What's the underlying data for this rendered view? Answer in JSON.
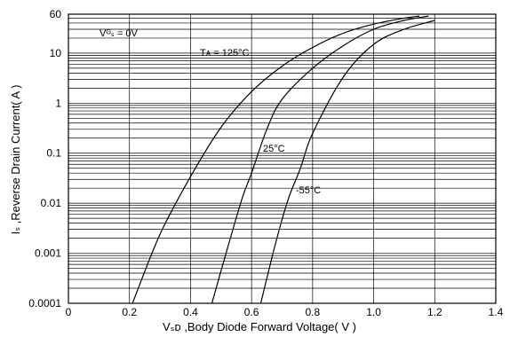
{
  "chart_data": {
    "type": "line",
    "title": "",
    "xlabel": "Vₛᴅ ,Body Diode Forward Voltage( V )",
    "ylabel": "Iₛ ,Reverse Drain Current( A )",
    "xlim": [
      0,
      1.4
    ],
    "ylim": [
      0.0001,
      60
    ],
    "yscale": "log",
    "grid": true,
    "x_ticks": [
      "0",
      "0.2",
      "0.4",
      "0.6",
      "0.8",
      "1.0",
      "1.2",
      "1.4"
    ],
    "y_ticks": [
      "0.0001",
      "0.001",
      "0.01",
      "0.1",
      "1",
      "10",
      "60"
    ],
    "annotations": {
      "condition": "Vᴳₛ = 0V",
      "ta_label": "Tᴀ = 125°C"
    },
    "series": [
      {
        "name": "125°C",
        "x": [
          0.21,
          0.3,
          0.4,
          0.5,
          0.6,
          0.7,
          0.8,
          0.9,
          1.0,
          1.1,
          1.15
        ],
        "y": [
          0.0001,
          0.0024,
          0.034,
          0.33,
          1.7,
          5.5,
          13,
          25,
          38,
          50,
          55
        ]
      },
      {
        "name": "25°C",
        "x": [
          0.47,
          0.52,
          0.57,
          0.6,
          0.65,
          0.7,
          0.8,
          0.9,
          1.0,
          1.1,
          1.18
        ],
        "y": [
          0.0001,
          0.0012,
          0.013,
          0.04,
          0.3,
          1.2,
          5,
          14,
          30,
          45,
          55
        ]
      },
      {
        "name": "-55°C",
        "x": [
          0.63,
          0.68,
          0.72,
          0.76,
          0.8,
          0.9,
          1.0,
          1.1,
          1.2
        ],
        "y": [
          0.0001,
          0.0017,
          0.012,
          0.05,
          0.25,
          3.3,
          15,
          30,
          45
        ]
      }
    ]
  }
}
